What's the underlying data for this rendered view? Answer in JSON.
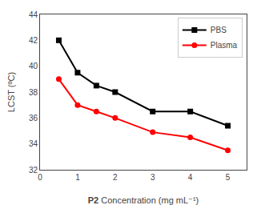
{
  "chart_data": {
    "type": "line",
    "x": [
      0.5,
      1.0,
      1.5,
      2.0,
      3.0,
      4.0,
      5.0
    ],
    "series": [
      {
        "name": "PBS",
        "color": "#000000",
        "marker": "square",
        "values": [
          42.0,
          39.5,
          38.5,
          38.0,
          36.5,
          36.5,
          35.4
        ]
      },
      {
        "name": "Plasma",
        "color": "#ff0000",
        "marker": "circle",
        "values": [
          39.0,
          37.0,
          36.5,
          36.0,
          34.9,
          34.5,
          33.5
        ]
      }
    ],
    "xlabel": "P2 Concentration (mg mL⁻¹)",
    "ylabel": "LCST (ºC)",
    "xlim": [
      0,
      5.5
    ],
    "ylim": [
      32,
      44
    ],
    "xticks": [
      0,
      1,
      2,
      3,
      4,
      5
    ],
    "yticks": [
      32,
      34,
      36,
      38,
      40,
      42,
      44
    ],
    "grid": false,
    "legend": "upper right"
  }
}
